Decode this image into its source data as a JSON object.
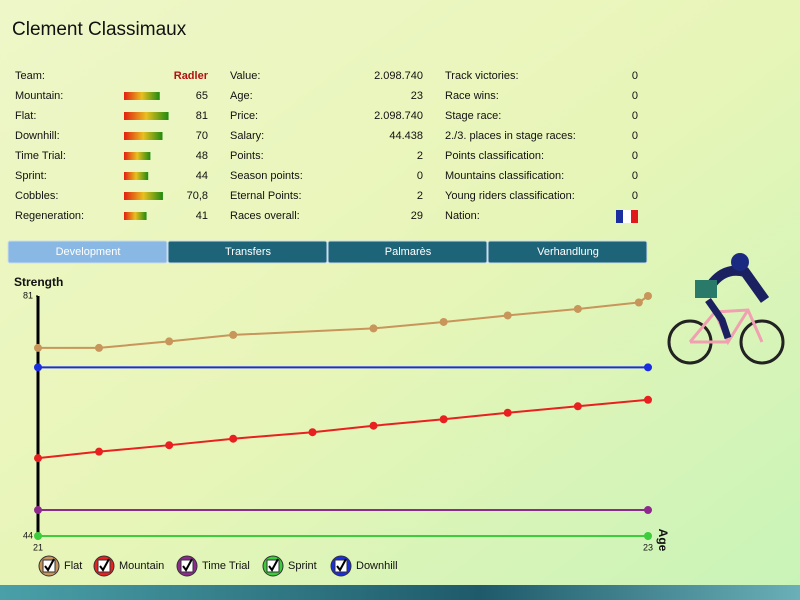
{
  "header": {
    "title": "Clement Classimaux"
  },
  "stats": [
    [
      {
        "label": "Team:",
        "text": "Radler"
      },
      {
        "label": "Mountain:",
        "value": 65
      },
      {
        "label": "Flat:",
        "value": 81
      },
      {
        "label": "Downhill:",
        "value": 70
      },
      {
        "label": "Time Trial:",
        "value": 48
      },
      {
        "label": "Sprint:",
        "value": 44
      },
      {
        "label": "Cobbles:",
        "value": 70.8,
        "value_label": "70,8"
      },
      {
        "label": "Regeneration:",
        "value": 41
      }
    ],
    [
      {
        "label": "Value:",
        "text": "2.098.740"
      },
      {
        "label": "Age:",
        "text": 23
      },
      {
        "label": "Price:",
        "text": "2.098.740"
      },
      {
        "label": "Salary:",
        "text": "44.438"
      },
      {
        "label": "Points:",
        "text": 2
      },
      {
        "label": "Season points:",
        "text": 0
      },
      {
        "label": "Eternal Points:",
        "text": 2
      },
      {
        "label": "Races overall:",
        "text": 29
      }
    ],
    [
      {
        "label": "Track victories:",
        "text": 0
      },
      {
        "label": "Race wins:",
        "text": 0
      },
      {
        "label": "Stage race:",
        "text": 0
      },
      {
        "label": "2./3. places in stage races:",
        "text": 0
      },
      {
        "label": "Points classification:",
        "text": 0
      },
      {
        "label": "Mountains classification:",
        "text": 0
      },
      {
        "label": "Young riders classification:",
        "text": 0
      },
      {
        "label": "Nation:"
      }
    ]
  ],
  "tabs": [
    "Development",
    "Transfers",
    "Palmarès",
    "Verhandlung"
  ],
  "chart_data": {
    "type": "line",
    "y_label": "Strength",
    "x_label": "Age",
    "xlim": [
      21,
      23
    ],
    "xticks": [
      21,
      23
    ],
    "ylim": [
      44,
      81
    ],
    "yticks": [
      44,
      81
    ],
    "series": [
      {
        "name": "Flat",
        "color": "#c8955a",
        "x": [
          21,
          21.2,
          21.43,
          21.64,
          22.1,
          22.33,
          22.54,
          22.77,
          22.97,
          23
        ],
        "values": [
          73,
          73,
          74,
          75,
          76,
          77,
          78,
          79,
          80,
          81
        ]
      },
      {
        "name": "Mountain",
        "color": "#e82020",
        "x": [
          21,
          21.2,
          21.43,
          21.64,
          21.9,
          22.1,
          22.33,
          22.54,
          22.77,
          23
        ],
        "values": [
          56,
          57,
          58,
          59,
          60,
          61,
          62,
          63,
          64,
          65
        ]
      },
      {
        "name": "Time Trial",
        "color": "#8e2a8e",
        "x": [
          21,
          23
        ],
        "values": [
          48,
          48
        ]
      },
      {
        "name": "Sprint",
        "color": "#3ccc3c",
        "x": [
          21,
          23
        ],
        "values": [
          44,
          44
        ]
      },
      {
        "name": "Downhill",
        "color": "#1a2ee0",
        "x": [
          21,
          23
        ],
        "values": [
          70,
          70
        ]
      }
    ]
  }
}
